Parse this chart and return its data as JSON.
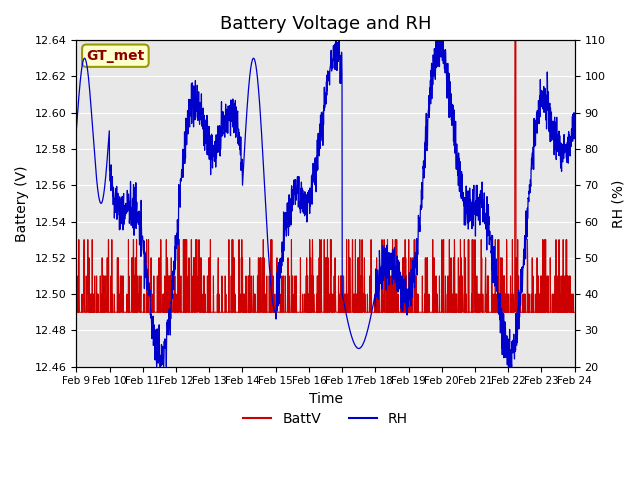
{
  "title": "Battery Voltage and RH",
  "xlabel": "Time",
  "ylabel_left": "Battery (V)",
  "ylabel_right": "RH (%)",
  "ylim_left": [
    12.46,
    12.64
  ],
  "ylim_right": [
    20,
    110
  ],
  "yticks_left": [
    12.46,
    12.48,
    12.5,
    12.52,
    12.54,
    12.56,
    12.58,
    12.6,
    12.62,
    12.64
  ],
  "yticks_right": [
    20,
    30,
    40,
    50,
    60,
    70,
    80,
    90,
    100,
    110
  ],
  "xtick_labels": [
    "Feb 9",
    "Feb 10",
    "Feb 11",
    "Feb 12",
    "Feb 13",
    "Feb 14",
    "Feb 15",
    "Feb 16",
    "Feb 17",
    "Feb 18",
    "Feb 19",
    "Feb 20",
    "Feb 21",
    "Feb 22",
    "Feb 23",
    "Feb 24"
  ],
  "color_battv": "#cc0000",
  "color_rh": "#0000cc",
  "legend_label_battv": "BattV",
  "legend_label_rh": "RH",
  "annotation_text": "GT_met",
  "annotation_bg": "#ffffcc",
  "annotation_border": "#999900",
  "plot_bg": "#e8e8e8",
  "fig_bg": "#ffffff",
  "grid_color": "#ffffff",
  "title_fontsize": 13
}
